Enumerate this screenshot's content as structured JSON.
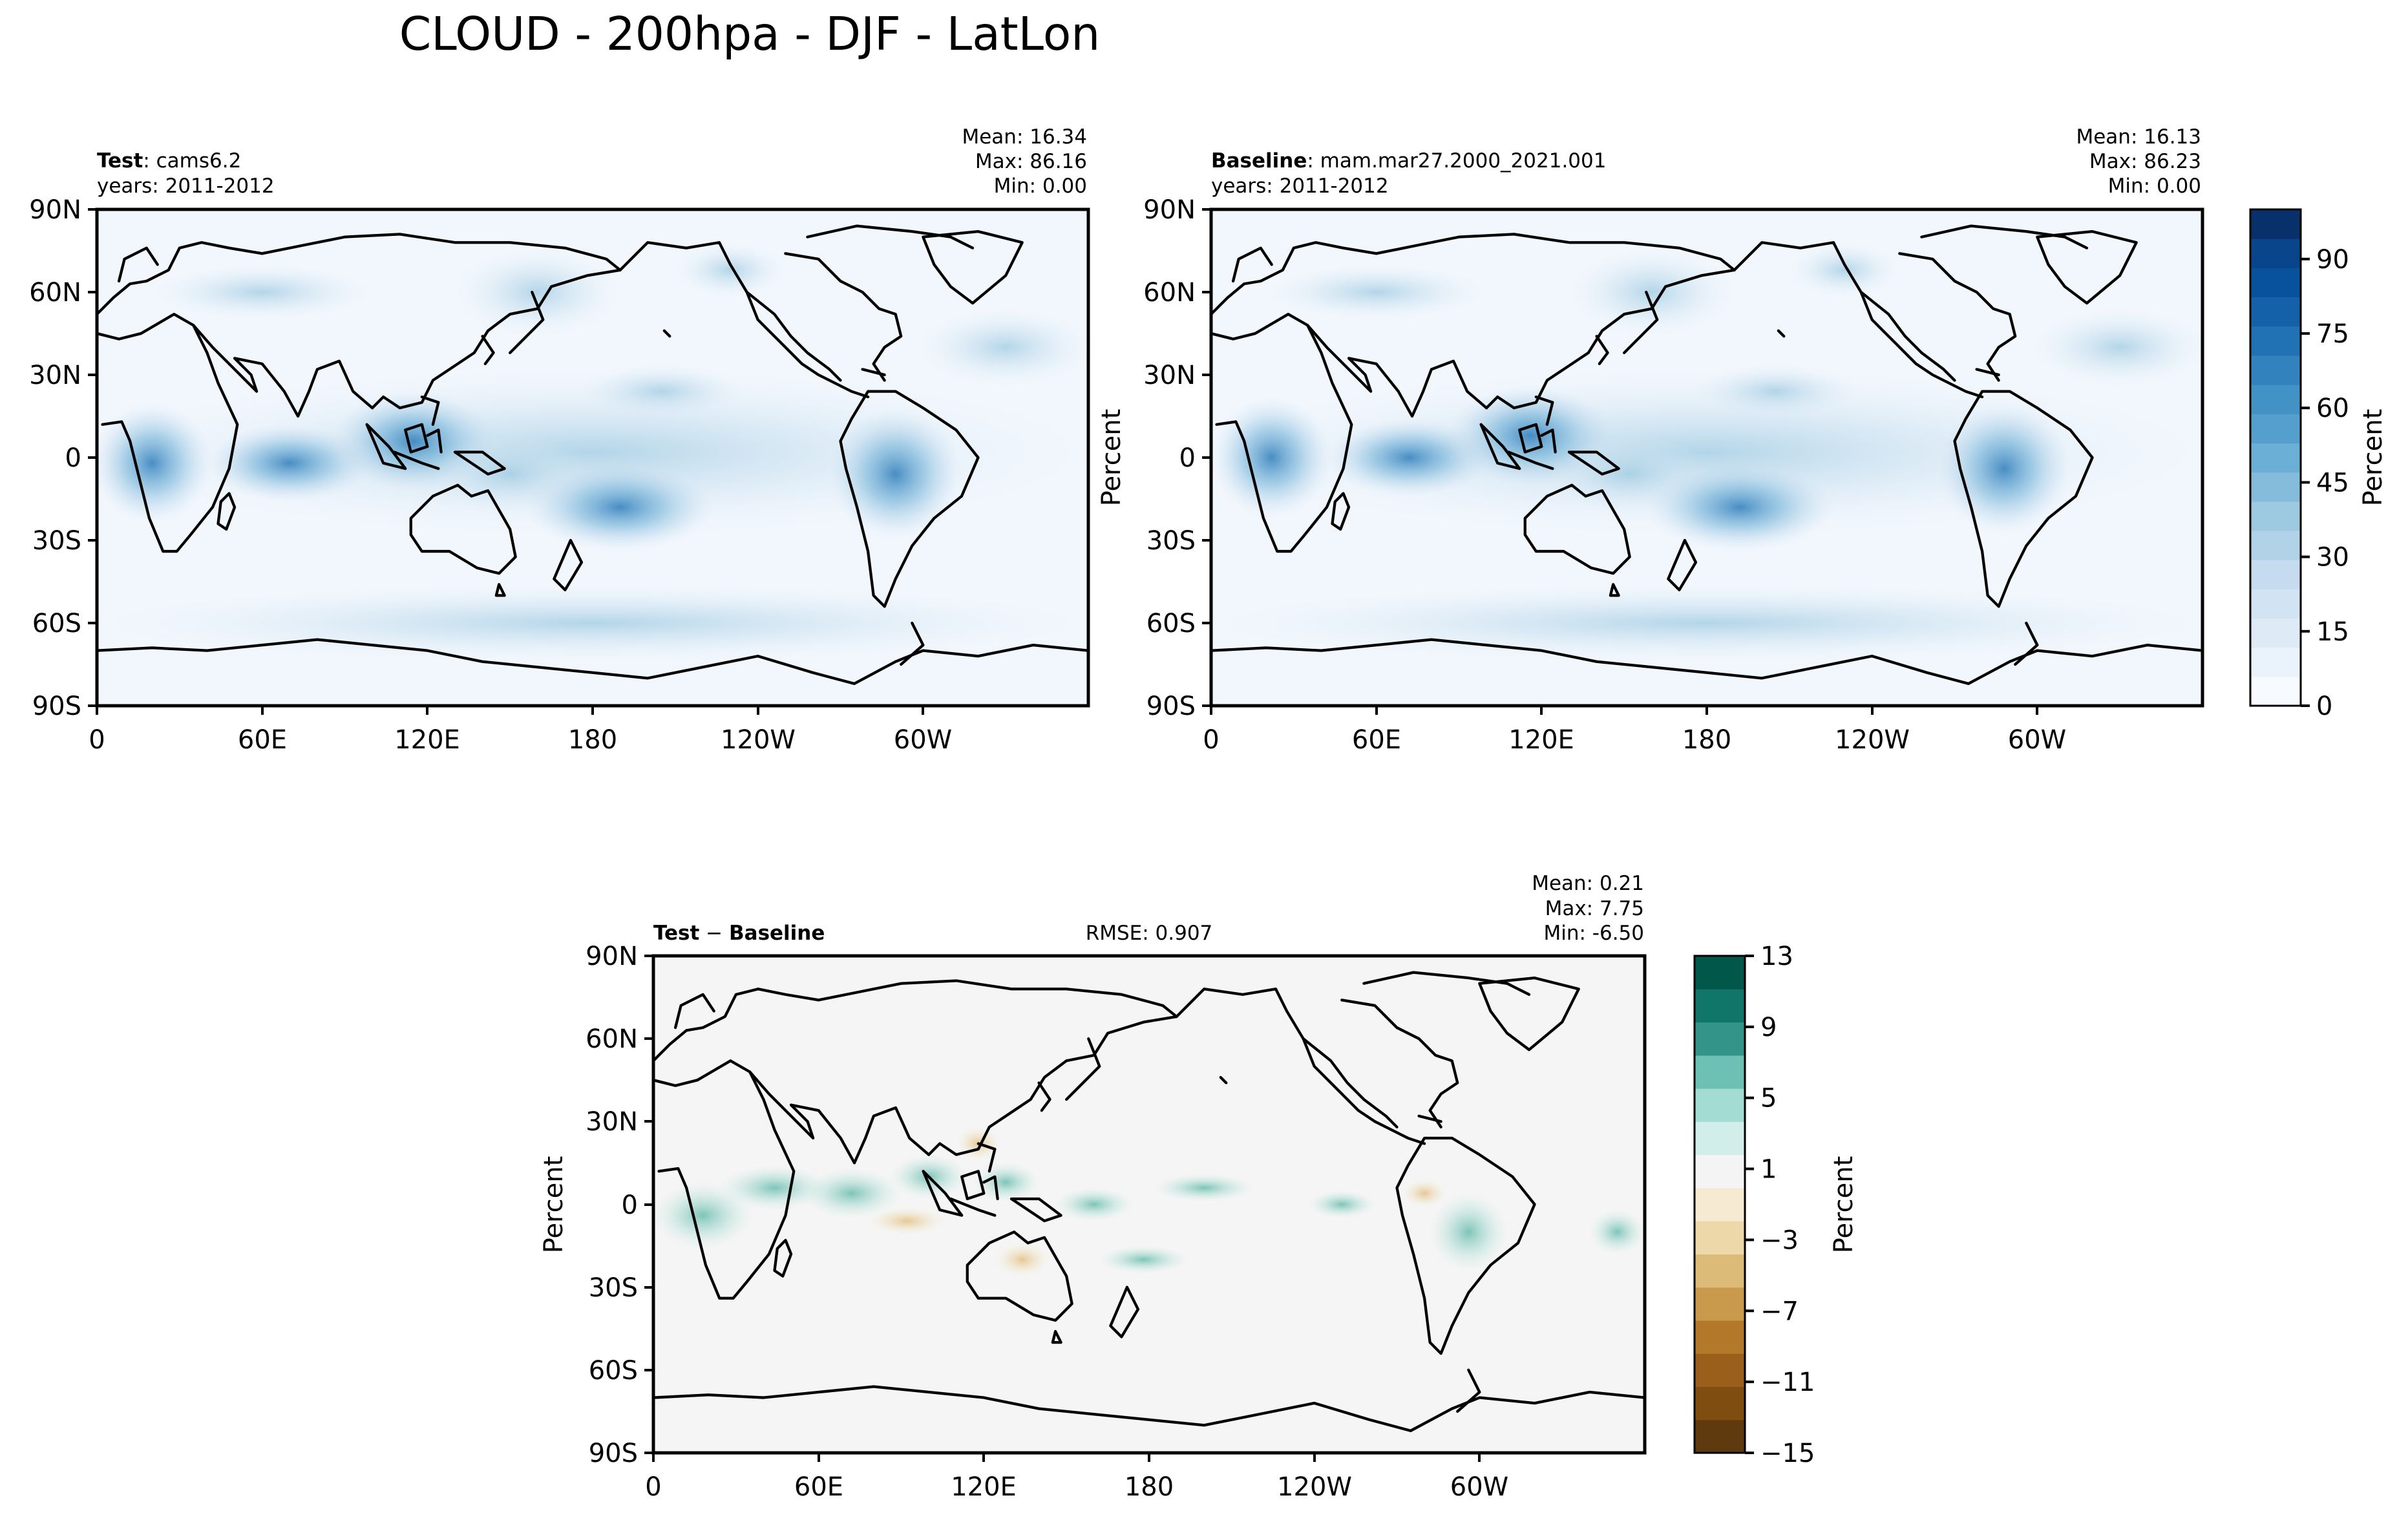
{
  "title": "CLOUD - 200hpa - DJF - LatLon",
  "chart_data": [
    {
      "type": "heatmap",
      "id": "test",
      "label_bold": "Test",
      "label_rest": ": cams6.2",
      "years": "years: 2011-2012",
      "stats": {
        "mean": "Mean: 16.34",
        "max": "Max: 86.16",
        "min": "Min:  0.00"
      },
      "ylabel": "",
      "xticks": [
        "0",
        "60E",
        "120E",
        "180",
        "120W",
        "60W"
      ],
      "yticks": [
        "90N",
        "60N",
        "30N",
        "0",
        "30S",
        "60S",
        "90S"
      ],
      "xlim": [
        0,
        360
      ],
      "ylim": [
        -90,
        90
      ],
      "field": "cloud fraction (percent)",
      "cmap": "Blues",
      "range": [
        0,
        100
      ]
    },
    {
      "type": "heatmap",
      "id": "baseline",
      "label_bold": "Baseline",
      "label_rest": ": mam.mar27.2000_2021.001",
      "years": "years: 2011-2012",
      "stats": {
        "mean": "Mean: 16.13",
        "max": "Max: 86.23",
        "min": "Min:  0.00"
      },
      "ylabel": "Percent",
      "xticks": [
        "0",
        "60E",
        "120E",
        "180",
        "120W",
        "60W"
      ],
      "yticks": [
        "90N",
        "60N",
        "30N",
        "0",
        "30S",
        "60S",
        "90S"
      ],
      "xlim": [
        0,
        360
      ],
      "ylim": [
        -90,
        90
      ],
      "field": "cloud fraction (percent)",
      "cmap": "Blues",
      "range": [
        0,
        100
      ]
    },
    {
      "type": "heatmap",
      "id": "diff",
      "label_bold": "Test",
      "label_mid": " − ",
      "label_bold2": "Baseline",
      "rmse": "RMSE: 0.907",
      "stats": {
        "mean": "Mean:  0.21",
        "max": "Max:  7.75",
        "min": "Min: -6.50"
      },
      "ylabel": "Percent",
      "xticks": [
        "0",
        "60E",
        "120E",
        "180",
        "120W",
        "60W"
      ],
      "yticks": [
        "90N",
        "60N",
        "30N",
        "0",
        "30S",
        "60S",
        "90S"
      ],
      "xlim": [
        0,
        360
      ],
      "ylim": [
        -90,
        90
      ],
      "field": "difference (percent)",
      "cmap": "BrBG",
      "range": [
        -15,
        13
      ]
    }
  ],
  "colorbars": {
    "main": {
      "label": "Percent",
      "min": 0,
      "max": 100,
      "ticks": [
        "0",
        "15",
        "30",
        "45",
        "60",
        "75",
        "90"
      ],
      "tick_values": [
        0,
        15,
        30,
        45,
        60,
        75,
        90
      ],
      "colors": [
        "#f7fbff",
        "#eaf3fb",
        "#deebf7",
        "#d2e3f3",
        "#c6dbef",
        "#b2d2e8",
        "#9ecae1",
        "#85bcdc",
        "#6baed6",
        "#549fcd",
        "#4292c6",
        "#3282be",
        "#2171b5",
        "#1561a9",
        "#08519c",
        "#08458a",
        "#08306b"
      ]
    },
    "diff": {
      "label": "Percent",
      "min": -15,
      "max": 13,
      "ticks": [
        "−15",
        "−11",
        "−7",
        "−3",
        "1",
        "5",
        "9",
        "13"
      ],
      "tick_values": [
        -15,
        -11,
        -7,
        -3,
        1,
        5,
        9,
        13
      ],
      "colors": [
        "#5f3a0e",
        "#7f4d0f",
        "#9a5f1a",
        "#b3782a",
        "#c99a4c",
        "#dcba78",
        "#ecd8a8",
        "#f6ead2",
        "#f4f4f4",
        "#d2eeea",
        "#a3dcd2",
        "#6cc0b4",
        "#33958a",
        "#107669",
        "#01574a"
      ]
    }
  }
}
